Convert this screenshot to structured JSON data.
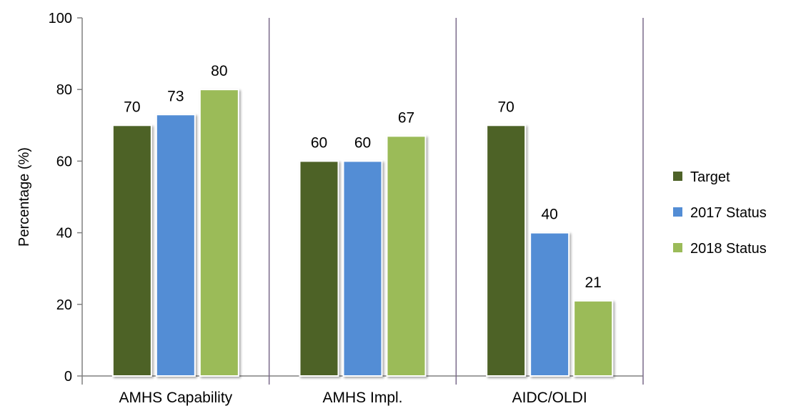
{
  "chart_data": {
    "type": "bar",
    "categories": [
      "AMHS Capability",
      "AMHS Impl.",
      "AIDC/OLDI"
    ],
    "series": [
      {
        "name": "Target",
        "values": [
          70,
          60,
          70
        ],
        "color": "#4e6228"
      },
      {
        "name": "2017 Status",
        "values": [
          73,
          60,
          40
        ],
        "color": "#538dd5"
      },
      {
        "name": "2018 Status",
        "values": [
          80,
          67,
          21
        ],
        "color": "#9bbb59"
      }
    ],
    "ylabel": "Percentage (%)",
    "ylim": [
      0,
      100
    ],
    "yticks": [
      0,
      20,
      40,
      60,
      80,
      100
    ],
    "legend_position": "right",
    "grid": false,
    "data_labels": true
  }
}
